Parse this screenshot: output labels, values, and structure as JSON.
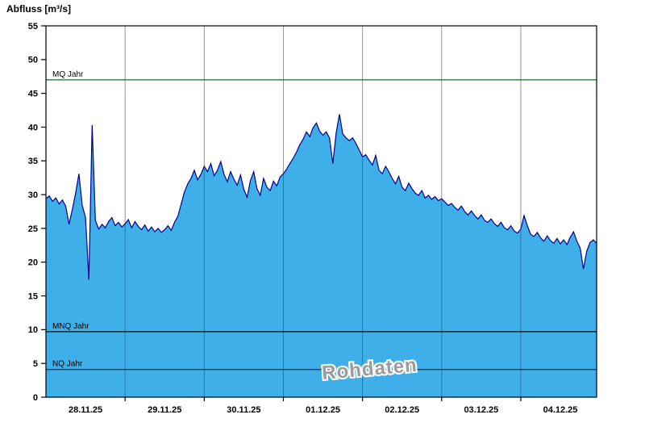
{
  "title": "Abfluss [m³/s]",
  "chart_data": {
    "type": "area",
    "title": "Abfluss [m³/s]",
    "ylabel": "Abfluss [m³/s]",
    "xlabel": "",
    "ylim": [
      0,
      55
    ],
    "y_ticks": [
      0,
      5,
      10,
      15,
      20,
      25,
      30,
      35,
      40,
      45,
      50,
      55
    ],
    "x_total_hours": 167,
    "hours_per_point": 1,
    "day_tick_labels": [
      "28.11.25",
      "29.11.25",
      "30.11.25",
      "01.12.25",
      "02.12.25",
      "03.12.25",
      "04.12.25"
    ],
    "grid": "vertical-day-lines",
    "legend_position": "none",
    "watermark": "Rohdaten",
    "reference_lines": [
      {
        "label": "MQ Jahr",
        "value": 47.0,
        "color": "#1e6b1e"
      },
      {
        "label": "MNQ Jahr",
        "value": 9.7,
        "color": "#111111"
      },
      {
        "label": "NQ Jahr",
        "value": 4.1,
        "color": "#111111"
      }
    ],
    "colors": {
      "fill": "#3eafe8",
      "line": "#00008b",
      "grid": "#3c3c5a",
      "axis": "#000000"
    },
    "series": [
      {
        "name": "Rohdaten",
        "values": [
          29.4,
          29.8,
          29.0,
          29.5,
          28.6,
          29.2,
          28.3,
          25.6,
          27.8,
          30.2,
          33.1,
          28.4,
          26.6,
          17.4,
          40.3,
          26.2,
          24.9,
          25.6,
          25.1,
          26.0,
          26.6,
          25.4,
          25.9,
          25.2,
          25.7,
          26.3,
          25.1,
          26.0,
          25.3,
          24.8,
          25.5,
          24.6,
          25.2,
          24.5,
          25.0,
          24.4,
          24.8,
          25.4,
          24.7,
          25.9,
          26.8,
          28.6,
          30.4,
          31.6,
          32.4,
          33.6,
          32.2,
          33.0,
          34.2,
          33.4,
          34.6,
          32.8,
          33.6,
          34.9,
          33.0,
          31.9,
          33.4,
          32.3,
          31.4,
          32.9,
          30.8,
          29.6,
          32.1,
          33.4,
          30.9,
          29.9,
          32.4,
          31.1,
          30.6,
          32.0,
          31.3,
          32.6,
          33.1,
          33.8,
          34.6,
          35.4,
          36.3,
          37.4,
          38.2,
          39.3,
          38.6,
          39.9,
          40.6,
          39.4,
          38.8,
          39.3,
          38.4,
          34.6,
          39.1,
          41.9,
          39.0,
          38.4,
          38.0,
          38.4,
          37.6,
          36.6,
          35.6,
          35.9,
          35.1,
          34.4,
          35.8,
          33.6,
          33.1,
          34.2,
          33.4,
          32.4,
          31.6,
          32.7,
          31.1,
          30.6,
          31.7,
          30.9,
          30.2,
          29.9,
          30.6,
          29.5,
          29.9,
          29.3,
          29.7,
          29.1,
          29.4,
          28.9,
          28.4,
          28.7,
          28.1,
          27.7,
          28.3,
          27.5,
          27.0,
          27.6,
          26.9,
          26.4,
          27.0,
          26.2,
          25.9,
          26.4,
          25.7,
          25.3,
          25.9,
          25.1,
          24.8,
          25.4,
          24.6,
          24.3,
          24.9,
          26.9,
          25.4,
          24.1,
          23.8,
          24.4,
          23.6,
          23.1,
          23.9,
          23.2,
          22.8,
          23.5,
          22.7,
          23.3,
          22.6,
          23.7,
          24.5,
          23.1,
          22.1,
          19.0,
          21.6,
          22.9,
          23.3,
          22.8
        ]
      }
    ]
  }
}
